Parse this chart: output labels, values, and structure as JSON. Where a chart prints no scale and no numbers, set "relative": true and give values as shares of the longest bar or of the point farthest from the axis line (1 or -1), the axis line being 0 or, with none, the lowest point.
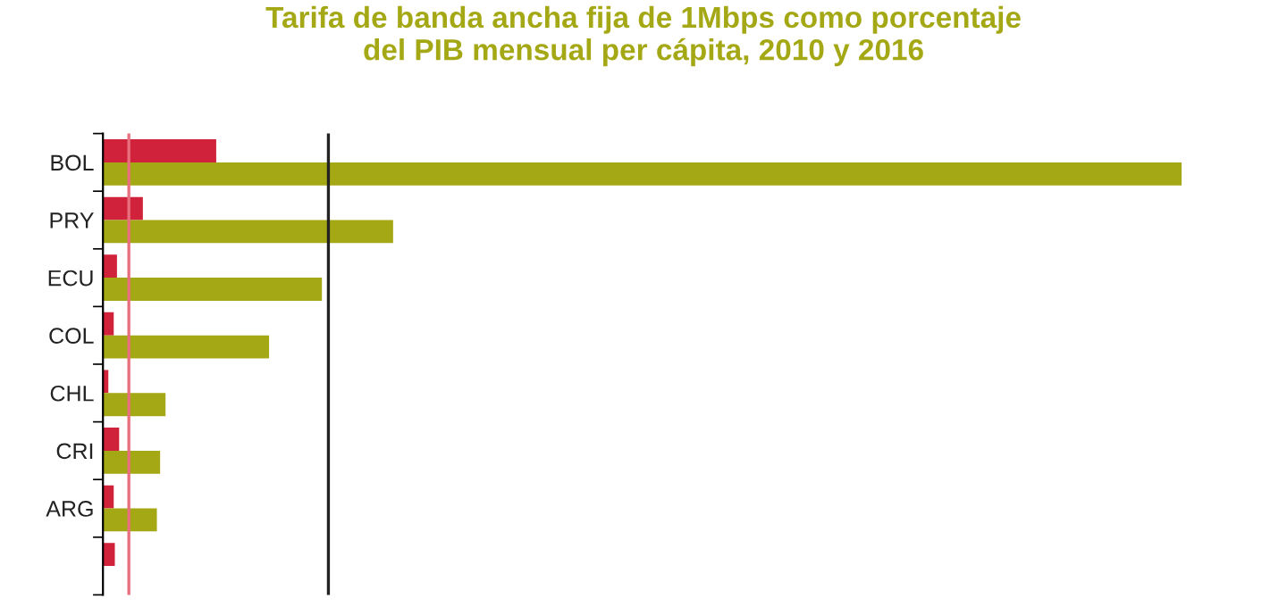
{
  "chart_data": {
    "type": "bar",
    "orientation": "horizontal",
    "relative": true,
    "title": "Tarifa de banda ancha fija de 1Mbps como porcentaje\ndel PIB mensual per cápita, 2010 y 2016",
    "categories": [
      "BOL",
      "PRY",
      "ECU",
      "COL",
      "CHL",
      "CRI",
      "ARG",
      null
    ],
    "series": [
      {
        "color": "#d0223a",
        "values": [
          0.105,
          0.037,
          0.013,
          0.01,
          0.005,
          0.015,
          0.01,
          0.011
        ]
      },
      {
        "color": "#a5a815",
        "values": [
          1,
          0.269,
          0.203,
          0.154,
          0.058,
          0.053,
          0.05,
          null
        ]
      }
    ],
    "ref_lines": [
      {
        "axis": "x",
        "value": 0.024,
        "color": "#e8707e"
      },
      {
        "axis": "x",
        "value": 0.209,
        "color": "#222222"
      }
    ],
    "legend": false,
    "grid": false
  }
}
